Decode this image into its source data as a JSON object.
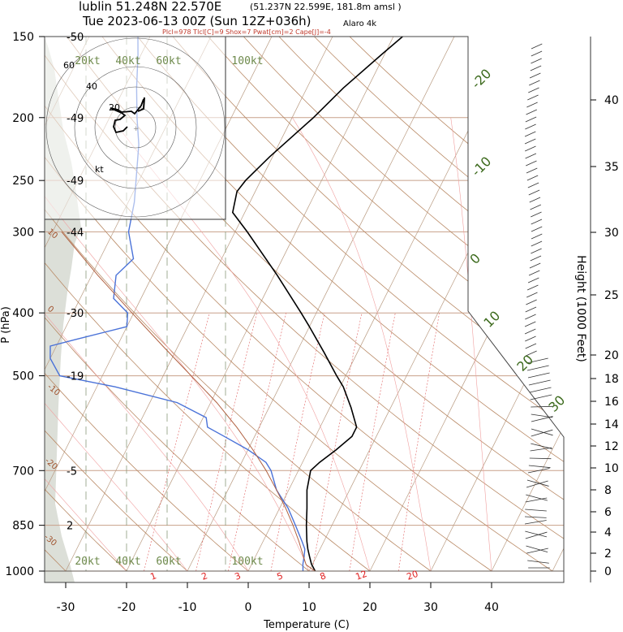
{
  "chart_data": {
    "type": "skew-t",
    "title": "lublin 51.248N 22.570E",
    "title_detail": "(51.237N 22.599E, 181.8m amsl )",
    "subtitle": "Tue 2023-06-13 00Z (Sun 12Z+036h)",
    "model": "Alaro 4k",
    "indices": "Plcl=978 Tlcl[C]=9 Shox=7 Pwat[cm]=2 Cape[J]=-4",
    "xlabel": "Temperature (C)",
    "ylabel": "P (hPa)",
    "ylabel_right": "Height (1000 Feet)",
    "x_ticks": [
      -30,
      -20,
      -10,
      0,
      10,
      20,
      30,
      40
    ],
    "p_ticks": [
      150,
      200,
      250,
      300,
      400,
      500,
      700,
      850,
      1000
    ],
    "height_ticks": [
      0,
      2,
      4,
      6,
      8,
      10,
      12,
      14,
      16,
      18,
      20,
      25,
      30,
      35,
      40
    ],
    "xlim": [
      -34,
      46
    ],
    "plim": [
      1000,
      150
    ],
    "hodograph_rings": [
      "20kt",
      "40kt",
      "60kt",
      "100kt"
    ],
    "hodograph_height_labels": [
      "60",
      "40",
      "20",
      "kt"
    ],
    "mixing_ratio_labels": [
      "1",
      "2",
      "3",
      "5",
      "8",
      "12",
      "20"
    ],
    "moist_adiabat_labels": [
      "-20",
      "-10",
      "0",
      "10",
      "20",
      "30"
    ],
    "dry_adiabat_labels": [
      "10",
      "0",
      "-10",
      "-20",
      "-30"
    ],
    "temp_labels": [
      {
        "p": 150,
        "text": "-50"
      },
      {
        "p": 200,
        "text": "-49"
      },
      {
        "p": 250,
        "text": "-49"
      },
      {
        "p": 300,
        "text": "-44"
      },
      {
        "p": 400,
        "text": "-30"
      },
      {
        "p": 500,
        "text": "-19"
      },
      {
        "p": 700,
        "text": "-5"
      },
      {
        "p": 850,
        "text": "2"
      }
    ],
    "series": [
      {
        "values": [
          [
            1000,
            11
          ],
          [
            975,
            9.8
          ],
          [
            950,
            8.9
          ],
          [
            925,
            8.0
          ],
          [
            900,
            7.2
          ],
          [
            850,
            5.8
          ],
          [
            800,
            4.5
          ],
          [
            750,
            3.0
          ],
          [
            700,
            2.0
          ],
          [
            680,
            2.8
          ],
          [
            650,
            4.5
          ],
          [
            620,
            6.0
          ],
          [
            600,
            6.0
          ],
          [
            560,
            3.5
          ],
          [
            520,
            0.5
          ],
          [
            500,
            -1.5
          ],
          [
            460,
            -5.5
          ],
          [
            420,
            -10.0
          ],
          [
            400,
            -12.5
          ],
          [
            350,
            -19.5
          ],
          [
            300,
            -28.0
          ],
          [
            280,
            -32.0
          ],
          [
            260,
            -33.0
          ],
          [
            250,
            -32.5
          ],
          [
            230,
            -30.5
          ],
          [
            200,
            -26.5
          ],
          [
            180,
            -24.0
          ],
          [
            160,
            -20.5
          ],
          [
            150,
            -18.5
          ]
        ]
      },
      {
        "values": [
          [
            1000,
            9
          ],
          [
            975,
            8.4
          ],
          [
            950,
            8.0
          ],
          [
            925,
            7.5
          ],
          [
            900,
            6.4
          ],
          [
            850,
            4.0
          ],
          [
            800,
            1.4
          ],
          [
            750,
            -2.0
          ],
          [
            700,
            -4.5
          ],
          [
            680,
            -6.0
          ],
          [
            650,
            -10.0
          ],
          [
            620,
            -15.0
          ],
          [
            600,
            -18.5
          ],
          [
            580,
            -19.5
          ],
          [
            550,
            -25.5
          ],
          [
            520,
            -37.0
          ],
          [
            500,
            -47.0
          ],
          [
            470,
            -50.0
          ],
          [
            450,
            -51.0
          ],
          [
            440,
            -47.5
          ],
          [
            420,
            -40.0
          ],
          [
            400,
            -41.0
          ],
          [
            380,
            -44.5
          ],
          [
            350,
            -46.0
          ],
          [
            330,
            -44.5
          ],
          [
            300,
            -47.5
          ],
          [
            270,
            -49.0
          ],
          [
            250,
            -50.5
          ],
          [
            220,
            -53.0
          ],
          [
            200,
            -55.5
          ],
          [
            180,
            -58.0
          ],
          [
            160,
            -60.5
          ],
          [
            150,
            -62.0
          ]
        ]
      },
      {
        "values": [
          [
            1000,
            11
          ],
          [
            978,
            9
          ],
          [
            950,
            7.9
          ],
          [
            900,
            5.9
          ],
          [
            850,
            3.6
          ],
          [
            800,
            1.0
          ],
          [
            750,
            -2.0
          ],
          [
            700,
            -5.3
          ],
          [
            650,
            -9.2
          ],
          [
            600,
            -13.7
          ],
          [
            550,
            -19.0
          ],
          [
            500,
            -25.4
          ],
          [
            450,
            -32.5
          ],
          [
            400,
            -40.3
          ],
          [
            350,
            -49.0
          ],
          [
            300,
            -58.5
          ]
        ]
      }
    ]
  }
}
